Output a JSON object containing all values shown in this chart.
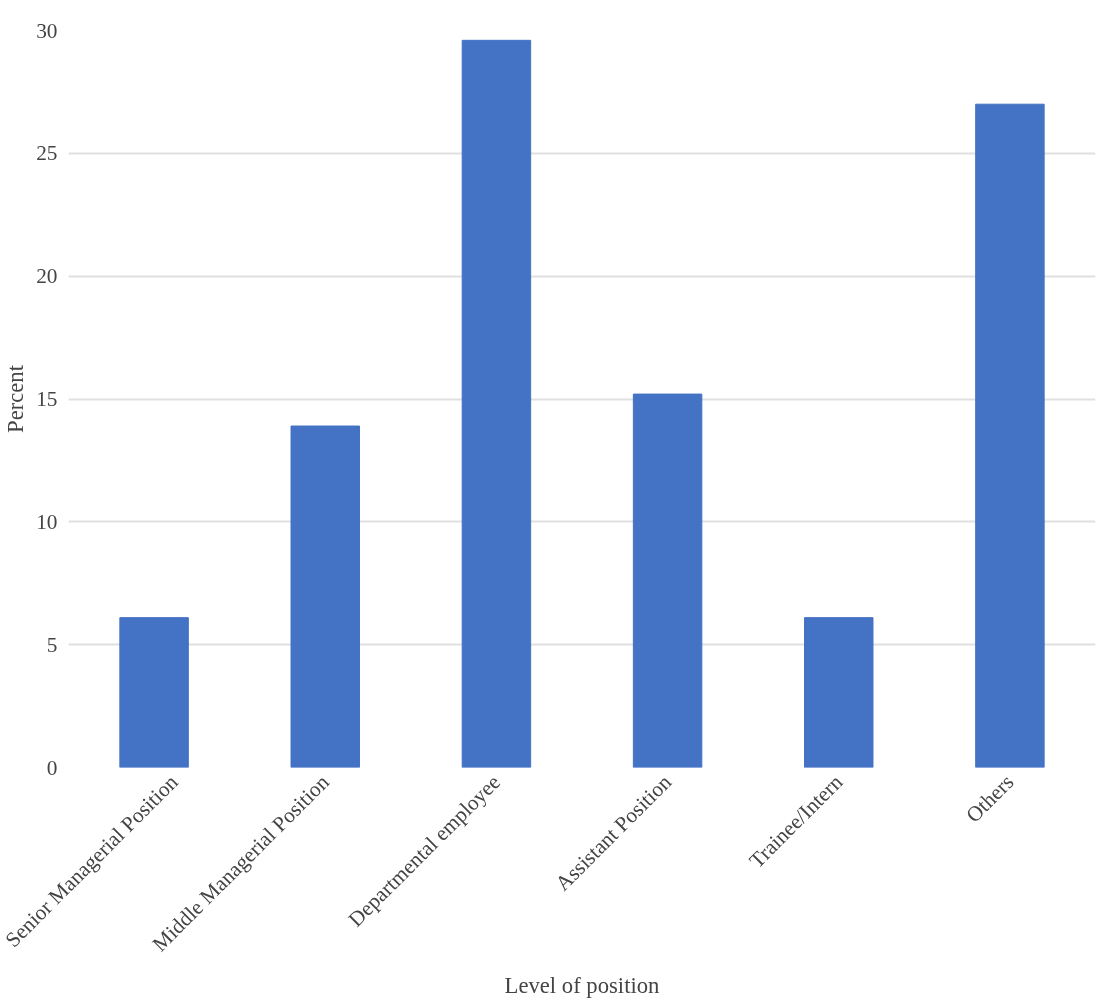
{
  "chart_data": {
    "type": "bar",
    "xlabel": "Level of position",
    "ylabel": "Percent",
    "categories": [
      "Senior Managerial Position",
      "Middle Managerial Position",
      "Departmental employee",
      "Assistant Position",
      "Trainee/Intern",
      "Others"
    ],
    "values": [
      6.1,
      13.9,
      29.6,
      15.2,
      6.1,
      27.0
    ],
    "color": "#4472c4",
    "ylim": [
      0,
      30
    ],
    "yticks": [
      0,
      5,
      10,
      15,
      20,
      25,
      30
    ],
    "grid": "y"
  }
}
